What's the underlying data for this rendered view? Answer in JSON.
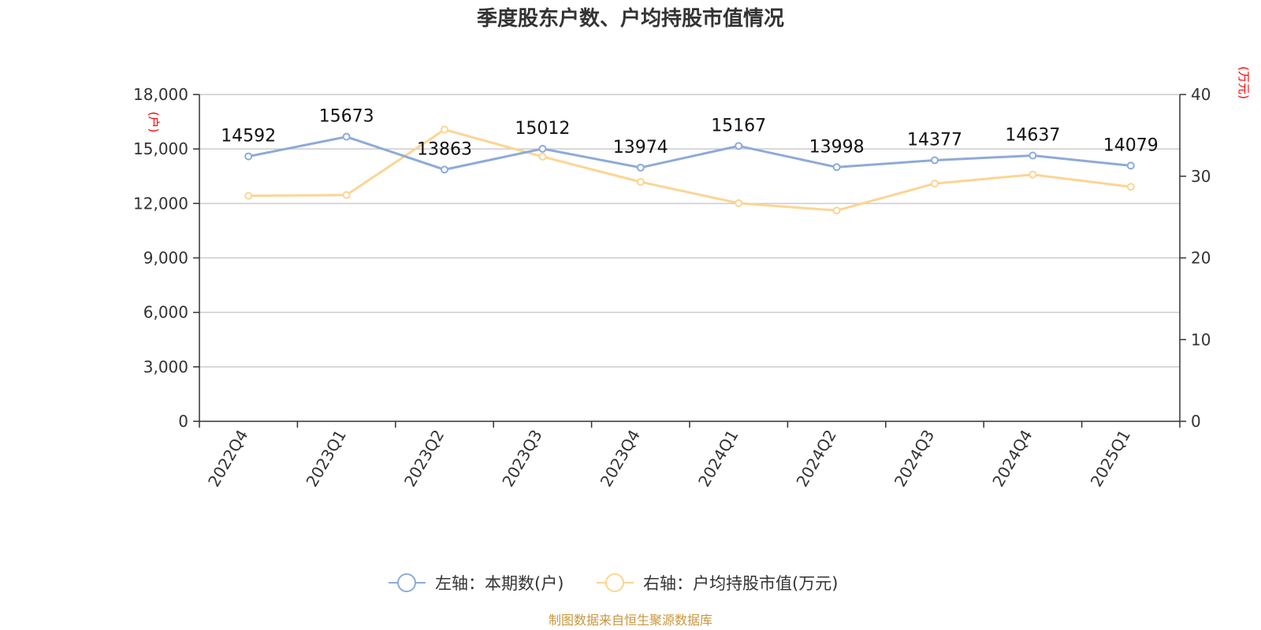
{
  "chart_data": {
    "type": "line",
    "title": "季度股东户数、户均持股市值情况",
    "categories": [
      "2022Q4",
      "2023Q1",
      "2023Q2",
      "2023Q3",
      "2023Q4",
      "2024Q1",
      "2024Q2",
      "2024Q3",
      "2024Q4",
      "2025Q1"
    ],
    "left_axis": {
      "unit": "(户)",
      "ylim": [
        0,
        18000
      ],
      "ticks": [
        "0",
        "3,000",
        "6,000",
        "9,000",
        "12,000",
        "15,000",
        "18,000"
      ]
    },
    "right_axis": {
      "unit": "(万元)",
      "ylim": [
        0,
        40
      ],
      "ticks": [
        "0",
        "10",
        "20",
        "30",
        "40"
      ]
    },
    "series": [
      {
        "name": "左轴：本期数(户)",
        "axis": "left",
        "color": "#8eaad8",
        "values": [
          14592,
          15673,
          13863,
          15012,
          13974,
          15167,
          13998,
          14377,
          14637,
          14079
        ],
        "labels": [
          "14592",
          "15673",
          "13863",
          "15012",
          "13974",
          "15167",
          "13998",
          "14377",
          "14637",
          "14079"
        ]
      },
      {
        "name": "右轴：户均持股市值(万元)",
        "axis": "right",
        "color": "#fcd592",
        "values": [
          27.6,
          27.7,
          35.7,
          32.4,
          29.3,
          26.7,
          25.8,
          29.1,
          30.2,
          28.7
        ]
      }
    ],
    "grid": true,
    "legend_position": "bottom"
  },
  "source": "制图数据来自恒生聚源数据库"
}
